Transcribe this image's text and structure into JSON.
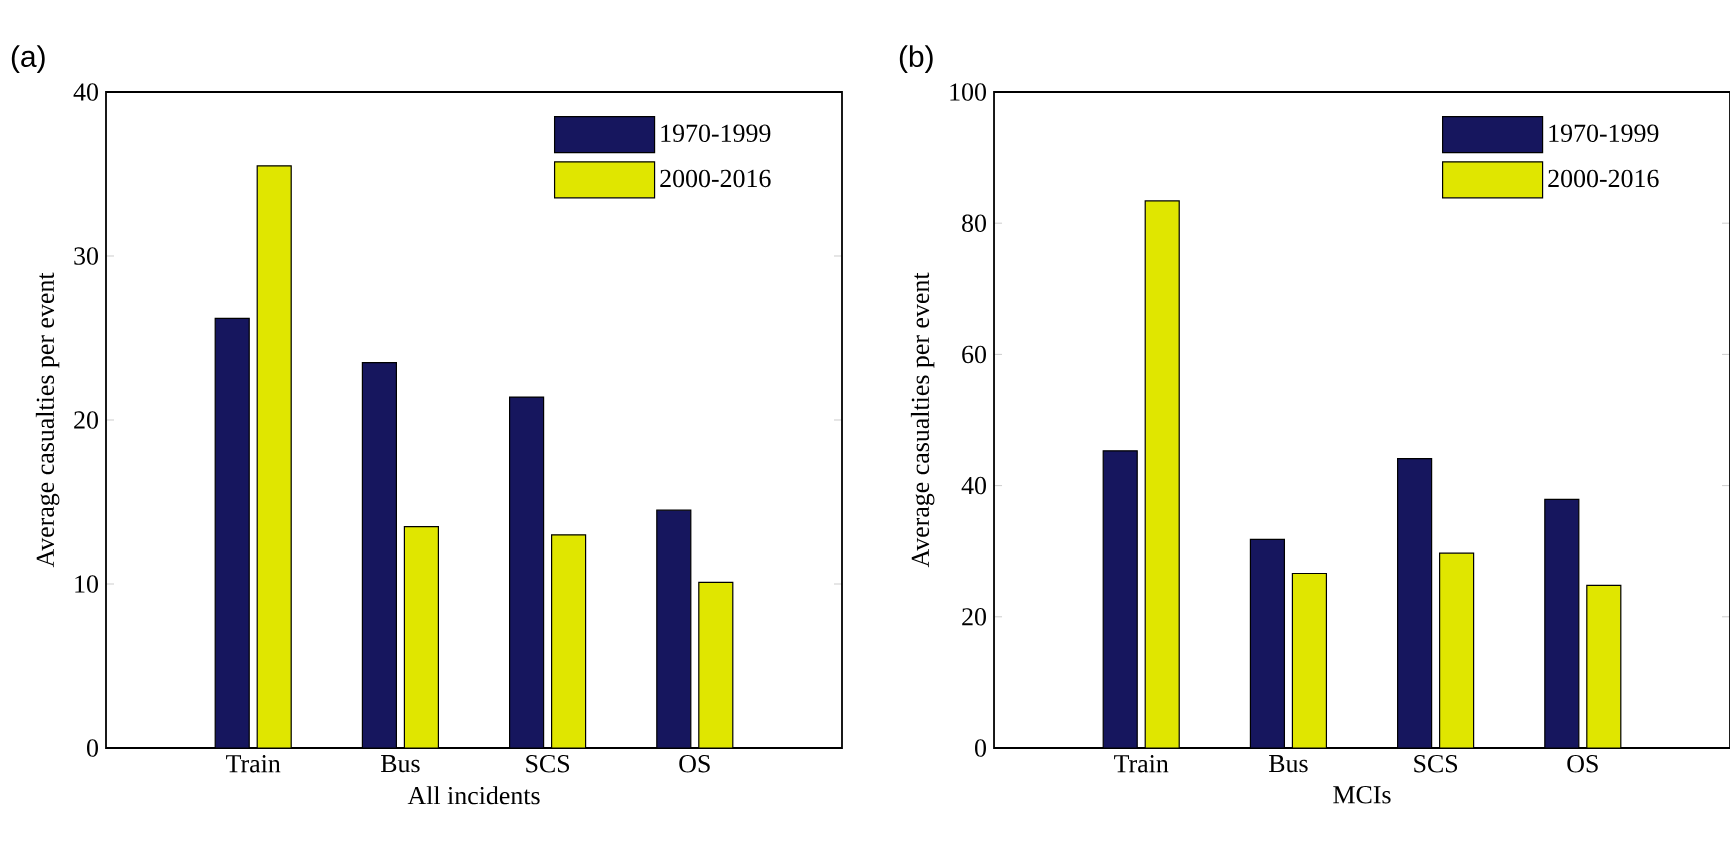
{
  "chart_data": [
    {
      "type": "bar",
      "title": "(a)",
      "xlabel": "All incidents",
      "ylabel": "Average casualties per event",
      "categories": [
        "Train",
        "Bus",
        "SCS",
        "OS"
      ],
      "ylim": [
        0,
        40
      ],
      "yticks": [
        0,
        10,
        20,
        30,
        40
      ],
      "legend": "top right",
      "series": [
        {
          "name": "1970-1999",
          "color": "#16165e",
          "values": [
            26.2,
            23.5,
            21.4,
            14.5
          ]
        },
        {
          "name": "2000-2016",
          "color": "#e0e600",
          "values": [
            35.5,
            13.5,
            13.0,
            10.1
          ]
        }
      ]
    },
    {
      "type": "bar",
      "title": "(b)",
      "xlabel": "MCIs",
      "ylabel": "Average casualties per event",
      "categories": [
        "Train",
        "Bus",
        "SCS",
        "OS"
      ],
      "ylim": [
        0,
        100
      ],
      "yticks": [
        0,
        20,
        40,
        60,
        80,
        100
      ],
      "legend": "top right",
      "series": [
        {
          "name": "1970-1999",
          "color": "#16165e",
          "values": [
            45.3,
            31.8,
            44.1,
            37.9
          ]
        },
        {
          "name": "2000-2016",
          "color": "#e0e600",
          "values": [
            83.4,
            26.6,
            29.7,
            24.8
          ]
        }
      ]
    }
  ]
}
